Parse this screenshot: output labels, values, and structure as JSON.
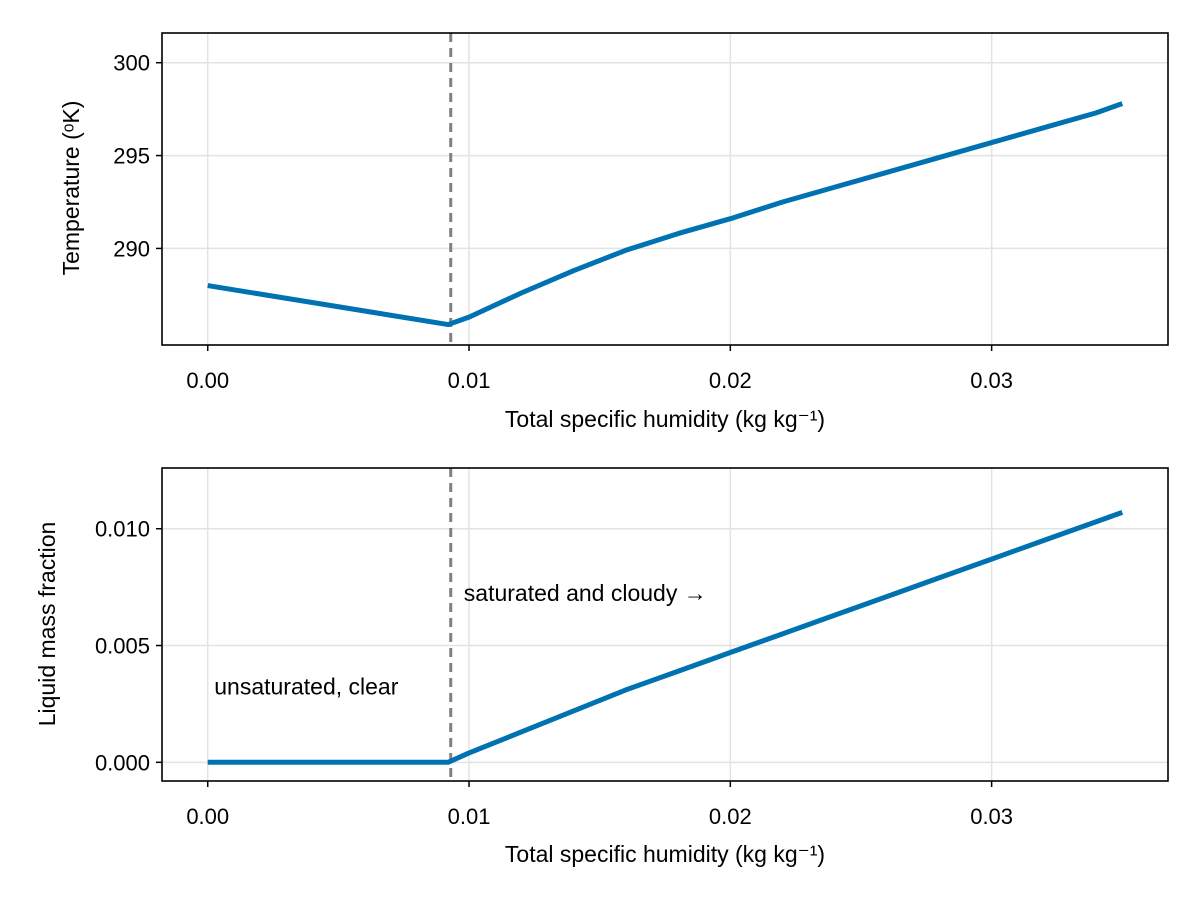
{
  "chart_data": [
    {
      "type": "line",
      "title": "",
      "xlabel": "Total specific humidity (kg kg⁻¹)",
      "ylabel": "Temperature (ᵒK)",
      "xlim": [
        -0.00175,
        0.03675
      ],
      "ylim": [
        284.8,
        301.6
      ],
      "xticks": [
        0.0,
        0.01,
        0.02,
        0.03
      ],
      "xtick_labels": [
        "0.00",
        "0.01",
        "0.02",
        "0.03"
      ],
      "yticks": [
        290,
        295,
        300
      ],
      "ytick_labels": [
        "290",
        "295",
        "300"
      ],
      "grid": true,
      "vline": {
        "x": 0.0093,
        "style": "dashed",
        "color": "#808080"
      },
      "series": [
        {
          "name": "temperature",
          "color": "#0072b2",
          "x": [
            0.0,
            0.0092,
            0.01,
            0.012,
            0.014,
            0.016,
            0.018,
            0.02,
            0.022,
            0.024,
            0.026,
            0.028,
            0.03,
            0.032,
            0.034,
            0.035
          ],
          "y": [
            288.0,
            285.9,
            286.3,
            287.6,
            288.8,
            289.9,
            290.8,
            291.6,
            292.5,
            293.3,
            294.1,
            294.9,
            295.7,
            296.5,
            297.3,
            297.8
          ]
        }
      ],
      "annotations": []
    },
    {
      "type": "line",
      "title": "",
      "xlabel": "Total specific humidity (kg kg⁻¹)",
      "ylabel": "Liquid mass fraction",
      "xlim": [
        -0.00175,
        0.03675
      ],
      "ylim": [
        -0.0008,
        0.0126
      ],
      "xticks": [
        0.0,
        0.01,
        0.02,
        0.03
      ],
      "xtick_labels": [
        "0.00",
        "0.01",
        "0.02",
        "0.03"
      ],
      "yticks": [
        0.0,
        0.005,
        0.01
      ],
      "ytick_labels": [
        "0.000",
        "0.005",
        "0.010"
      ],
      "grid": true,
      "vline": {
        "x": 0.0093,
        "style": "dashed",
        "color": "#808080"
      },
      "series": [
        {
          "name": "liquid mass fraction",
          "color": "#0072b2",
          "x": [
            0.0,
            0.0092,
            0.01,
            0.012,
            0.014,
            0.016,
            0.018,
            0.02,
            0.022,
            0.024,
            0.026,
            0.028,
            0.03,
            0.032,
            0.034,
            0.035
          ],
          "y": [
            0.0,
            0.0,
            0.0004,
            0.0013,
            0.0022,
            0.0031,
            0.0039,
            0.0047,
            0.0055,
            0.0063,
            0.0071,
            0.0079,
            0.0087,
            0.0095,
            0.0103,
            0.0107
          ]
        }
      ],
      "annotations": [
        {
          "text": "unsaturated, clear",
          "x": 0.00025,
          "y": 0.0029,
          "anchor": "start"
        },
        {
          "text": "saturated and cloudy →",
          "x": 0.0098,
          "y": 0.0069,
          "anchor": "start"
        }
      ]
    }
  ]
}
